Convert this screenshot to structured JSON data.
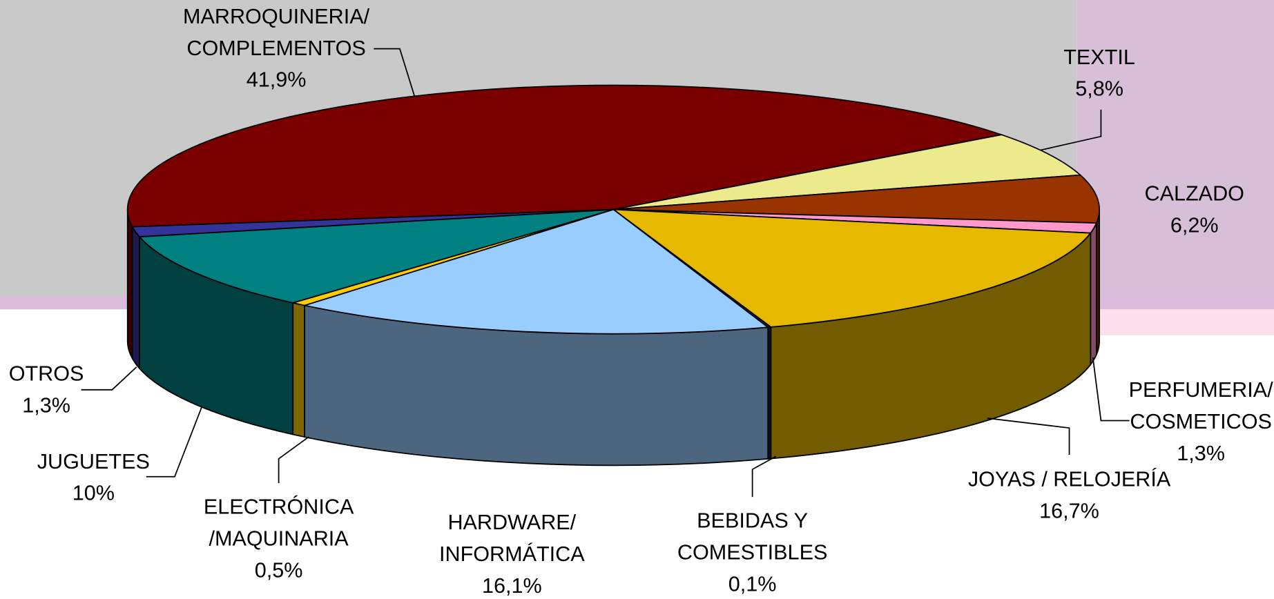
{
  "chart_data": {
    "type": "pie3d",
    "categories": [
      [
        "MARROQUINERIA/",
        "COMPLEMENTOS"
      ],
      [
        "TEXTIL"
      ],
      [
        "CALZADO"
      ],
      [
        "PERFUMERIA/",
        "COSMETICOS"
      ],
      [
        "JOYAS / RELOJERÍA"
      ],
      [
        "BEBIDAS Y",
        "COMESTIBLES"
      ],
      [
        "HARDWARE/",
        "INFORMÁTICA"
      ],
      [
        "ELECTRÓNICA",
        "/MAQUINARIA"
      ],
      [
        "JUGUETES"
      ],
      [
        "OTROS"
      ]
    ],
    "values": [
      41.9,
      5.8,
      6.2,
      1.3,
      16.7,
      0.1,
      16.1,
      0.5,
      10,
      1.3
    ],
    "value_labels": [
      "41,9%",
      "5,8%",
      "6,2%",
      "1,3%",
      "16,7%",
      "0,1%",
      "16,1%",
      "0,5%",
      "10%",
      "1,3%"
    ],
    "colors": [
      "#7a0000",
      "#ecea8c",
      "#993300",
      "#ff99cc",
      "#e6b800",
      "#1f1f5f",
      "#99ccff",
      "#ffcc00",
      "#008080",
      "#333399"
    ]
  }
}
